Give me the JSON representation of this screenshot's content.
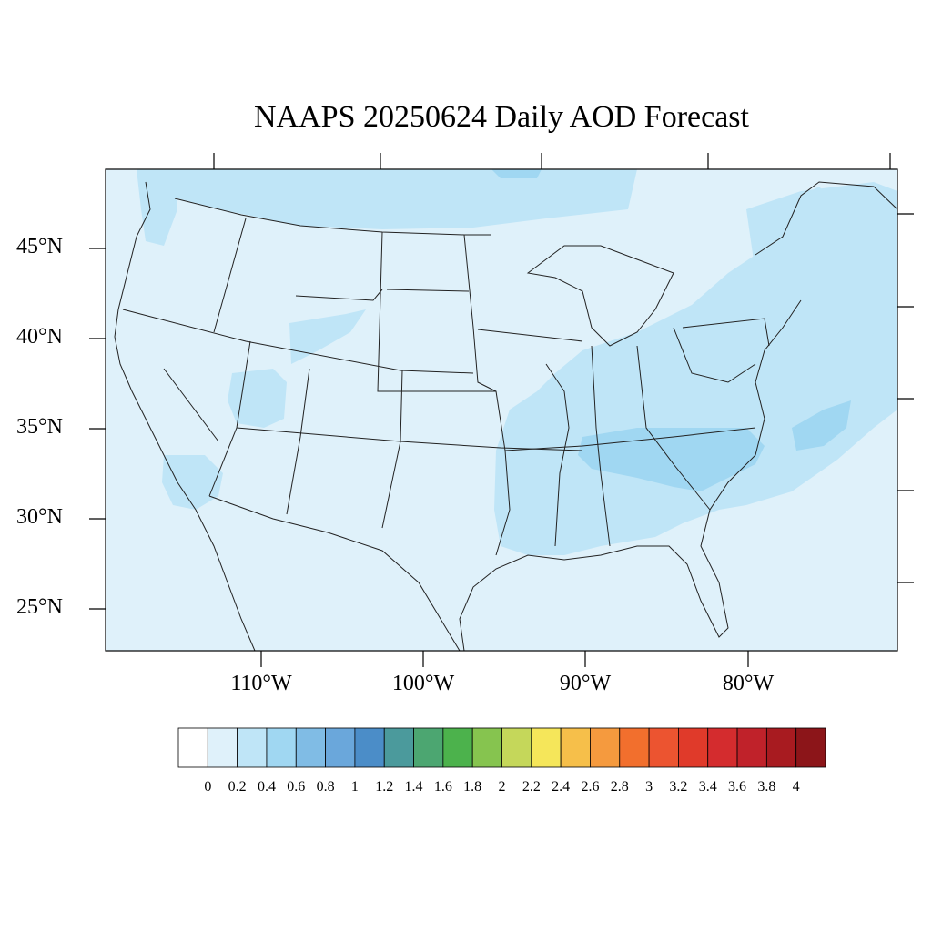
{
  "title": "NAAPS 20250624 Daily AOD Forecast",
  "map": {
    "region": "contiguous United States",
    "lat_ticks": [
      "45°N",
      "40°N",
      "35°N",
      "30°N",
      "25°N"
    ],
    "lon_ticks": [
      "110°W",
      "100°W",
      "90°W",
      "80°W"
    ],
    "field_colors": {
      "background": "#dff1fa",
      "aod_0_2_0_4": "#bfe5f7",
      "aod_0_4_0_6": "#a0d7f2",
      "aod_0_6_0_8": "#77b9e3"
    }
  },
  "colorbar": {
    "labels": [
      "0",
      "0.2",
      "0.4",
      "0.6",
      "0.8",
      "1",
      "1.2",
      "1.4",
      "1.6",
      "1.8",
      "2",
      "2.2",
      "2.4",
      "2.6",
      "2.8",
      "3",
      "3.2",
      "3.4",
      "3.6",
      "3.8",
      "4"
    ],
    "colors": [
      "#ffffff",
      "#dff1fa",
      "#bfe5f7",
      "#a0d7f2",
      "#80bce5",
      "#6aa7db",
      "#4b8dc8",
      "#4b9a9c",
      "#4ca671",
      "#4cb24c",
      "#86c44f",
      "#c5d75a",
      "#f5e65a",
      "#f6bf4a",
      "#f59a3e",
      "#f26f2d",
      "#ec5430",
      "#e03a2a",
      "#d42c2e",
      "#c0222a",
      "#a81b20",
      "#8c1519"
    ]
  }
}
